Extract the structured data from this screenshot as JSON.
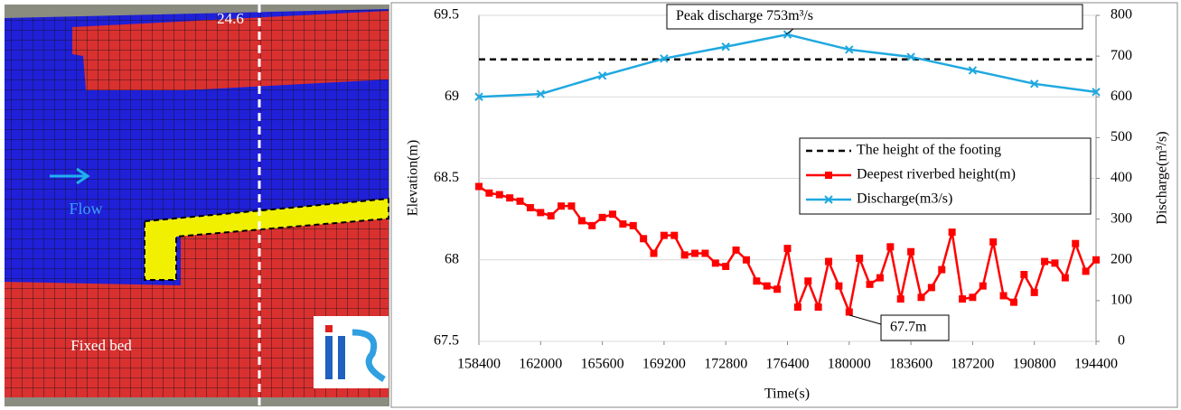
{
  "map": {
    "section_label": "24.6",
    "flow_label": "Flow",
    "bed_label": "Fixed bed"
  },
  "chart_data": {
    "type": "line",
    "xlabel": "Time(s)",
    "ylabel": "Elevation(m)",
    "y2label": "Discharge(m³/s)",
    "xlim": [
      158400,
      194400
    ],
    "xticks": [
      158400,
      162000,
      165600,
      169200,
      172800,
      176400,
      180000,
      183600,
      187200,
      190800,
      194400
    ],
    "ylim": [
      67.5,
      69.5
    ],
    "yticks": [
      67.5,
      68,
      68.5,
      69,
      69.5
    ],
    "y2lim": [
      0,
      800
    ],
    "y2ticks": [
      0,
      100,
      200,
      300,
      400,
      500,
      600,
      700,
      800
    ],
    "grid": true,
    "legend": "right",
    "series": [
      {
        "name": "The height of the footing",
        "color": "#000000",
        "style": "dashed",
        "marker": "none",
        "axis": "y",
        "x": [
          158400,
          194400
        ],
        "values": [
          69.23,
          69.23
        ]
      },
      {
        "name": "Deepest riverbed height(m)",
        "color": "#ff0000",
        "style": "solid",
        "marker": "square",
        "axis": "y",
        "x": [
          158400,
          159000,
          159600,
          160200,
          160800,
          161400,
          162000,
          162600,
          163200,
          163800,
          164400,
          165000,
          165600,
          166200,
          166800,
          167400,
          168000,
          168600,
          169200,
          169800,
          170400,
          171000,
          171600,
          172200,
          172800,
          173400,
          174000,
          174600,
          175200,
          175800,
          176400,
          177000,
          177600,
          178200,
          178800,
          179400,
          180000,
          180600,
          181200,
          181800,
          182400,
          183000,
          183600,
          184200,
          184800,
          185400,
          186000,
          186600,
          187200,
          187800,
          188400,
          189000,
          189600,
          190200,
          190800,
          191400,
          192000,
          192600,
          193200,
          193800,
          194400
        ],
        "values": [
          68.45,
          68.41,
          68.4,
          68.38,
          68.36,
          68.32,
          68.29,
          68.27,
          68.33,
          68.33,
          68.24,
          68.21,
          68.26,
          68.28,
          68.22,
          68.21,
          68.13,
          68.04,
          68.15,
          68.15,
          68.03,
          68.04,
          68.04,
          67.98,
          67.96,
          68.06,
          68.0,
          67.87,
          67.84,
          67.82,
          68.07,
          67.71,
          67.87,
          67.71,
          67.99,
          67.84,
          67.68,
          68.01,
          67.85,
          67.89,
          68.08,
          67.76,
          68.05,
          67.77,
          67.83,
          67.94,
          68.17,
          67.76,
          67.77,
          67.84,
          68.11,
          67.78,
          67.74,
          67.91,
          67.8,
          67.99,
          67.98,
          67.89,
          68.1,
          67.93,
          68.0
        ]
      },
      {
        "name": "Discharge(m3/s)",
        "color": "#1fa8e0",
        "style": "solid",
        "marker": "x",
        "axis": "y2",
        "x": [
          158400,
          162000,
          165600,
          169200,
          172800,
          176400,
          180000,
          183600,
          187200,
          190800,
          194400
        ],
        "values": [
          600,
          607,
          652,
          694,
          723,
          753,
          716,
          698,
          665,
          632,
          612
        ]
      }
    ],
    "annotations": [
      "Peak discharge  753m³/s",
      "67.7m"
    ]
  }
}
